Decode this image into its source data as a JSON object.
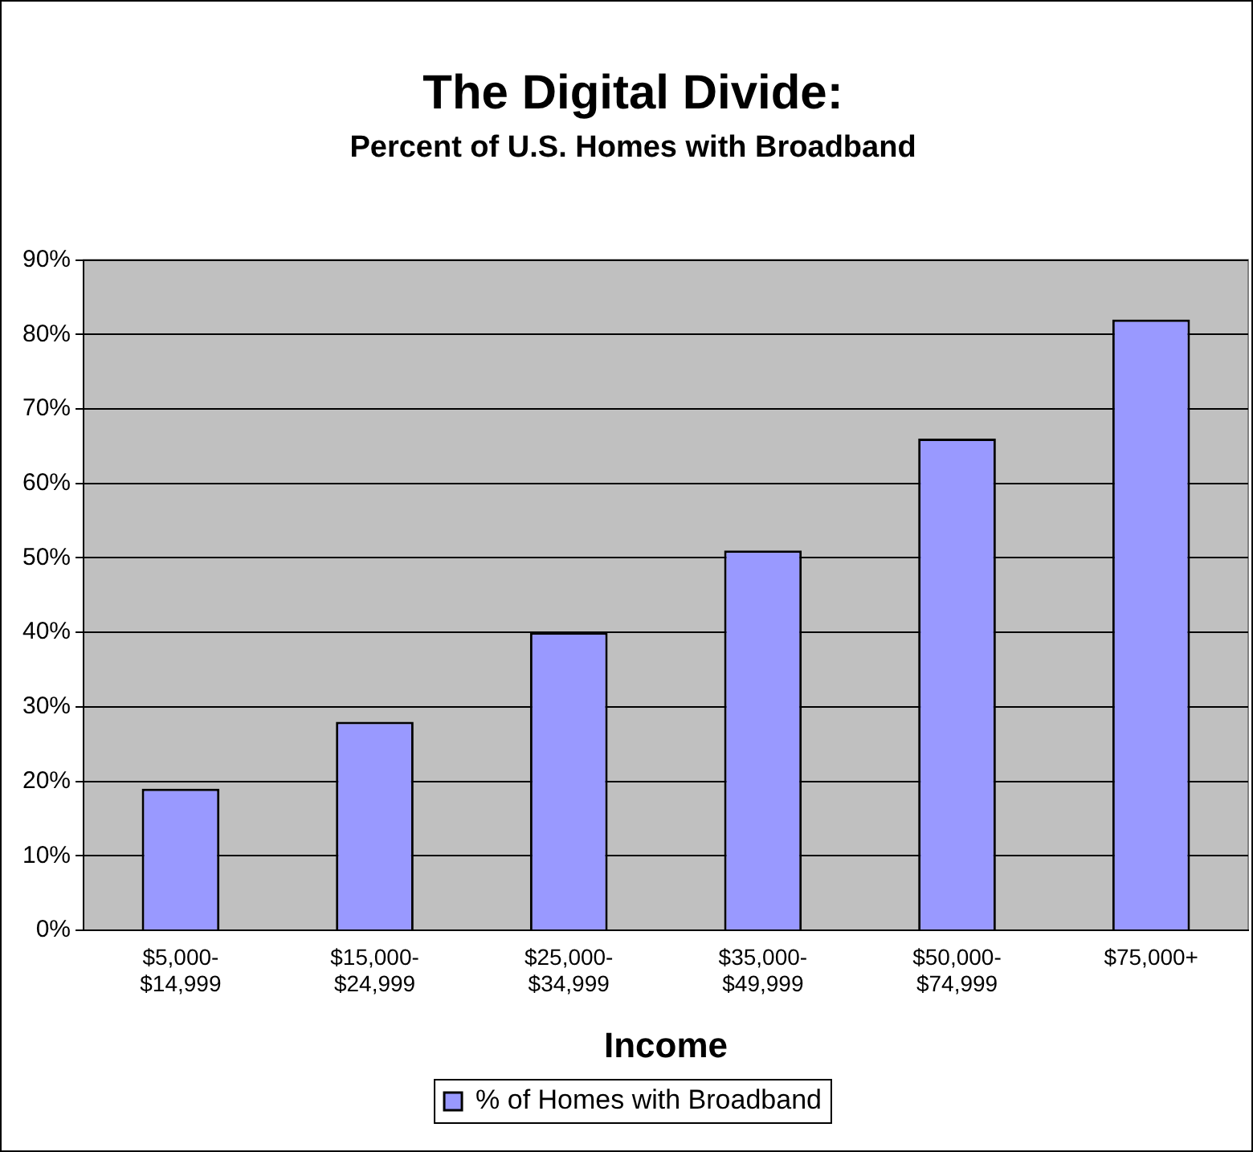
{
  "chart_data": {
    "type": "bar",
    "title": "The Digital Divide:",
    "subtitle": "Percent of U.S. Homes with Broadband",
    "xlabel": "Income",
    "categories": [
      "$5,000-$14,999",
      "$15,000-$24,999",
      "$25,000-$34,999",
      "$35,000-$49,999",
      "$50,000-$74,999",
      "$75,000+"
    ],
    "series": [
      {
        "name": "% of Homes with Broadband",
        "color": "#9999ff",
        "values": [
          19,
          28,
          40,
          51,
          66,
          82
        ]
      }
    ],
    "ylim": [
      0,
      90
    ],
    "yticks": [
      {
        "value": 0,
        "label": "0%"
      },
      {
        "value": 10,
        "label": "10%"
      },
      {
        "value": 20,
        "label": "20%"
      },
      {
        "value": 30,
        "label": "30%"
      },
      {
        "value": 40,
        "label": "40%"
      },
      {
        "value": 50,
        "label": "50%"
      },
      {
        "value": 60,
        "label": "60%"
      },
      {
        "value": 70,
        "label": "70%"
      },
      {
        "value": 80,
        "label": "80%"
      },
      {
        "value": 90,
        "label": "90%"
      }
    ],
    "grid": "y",
    "legend": "bottom"
  }
}
